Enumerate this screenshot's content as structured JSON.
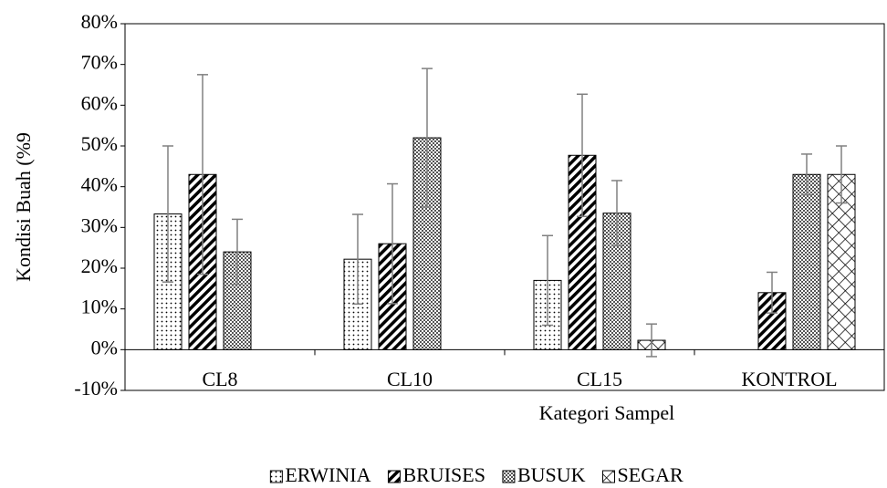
{
  "chart_data": {
    "type": "bar",
    "y_label": "Kondisi Buah (%9",
    "x_label": "Kategori Sampel",
    "categories": [
      "CL8",
      "CL10",
      "CL15",
      "KONTROL"
    ],
    "series": [
      {
        "name": "ERWINIA",
        "color": "#000000",
        "pattern": "dots",
        "values": [
          33.3,
          22.2,
          17,
          0
        ],
        "errors": [
          16.7,
          11,
          11,
          0
        ]
      },
      {
        "name": "BRUISES",
        "color": "#000000",
        "pattern": "diagonal",
        "values": [
          43,
          26,
          47.7,
          14
        ],
        "errors": [
          24.5,
          14.7,
          15,
          5
        ]
      },
      {
        "name": "BUSUK",
        "color": "#000000",
        "pattern": "crosshatch",
        "values": [
          24,
          52,
          33.5,
          43
        ],
        "errors": [
          8,
          17,
          8,
          5
        ]
      },
      {
        "name": "SEGAR",
        "color": "#000000",
        "pattern": "diamond",
        "values": [
          0,
          0,
          2.3,
          43
        ],
        "errors": [
          0,
          0,
          4,
          7
        ]
      }
    ],
    "error_color": "#808080",
    "ylim": [
      -10,
      80
    ],
    "yticks": [
      {
        "value": -10,
        "label": "-10%"
      },
      {
        "value": 0,
        "label": "0%"
      },
      {
        "value": 10,
        "label": "10%"
      },
      {
        "value": 20,
        "label": "20%"
      },
      {
        "value": 30,
        "label": "30%"
      },
      {
        "value": 40,
        "label": "40%"
      },
      {
        "value": 50,
        "label": "50%"
      },
      {
        "value": 60,
        "label": "60%"
      },
      {
        "value": 70,
        "label": "70%"
      },
      {
        "value": 80,
        "label": "80%"
      }
    ],
    "legend": "bottom"
  }
}
